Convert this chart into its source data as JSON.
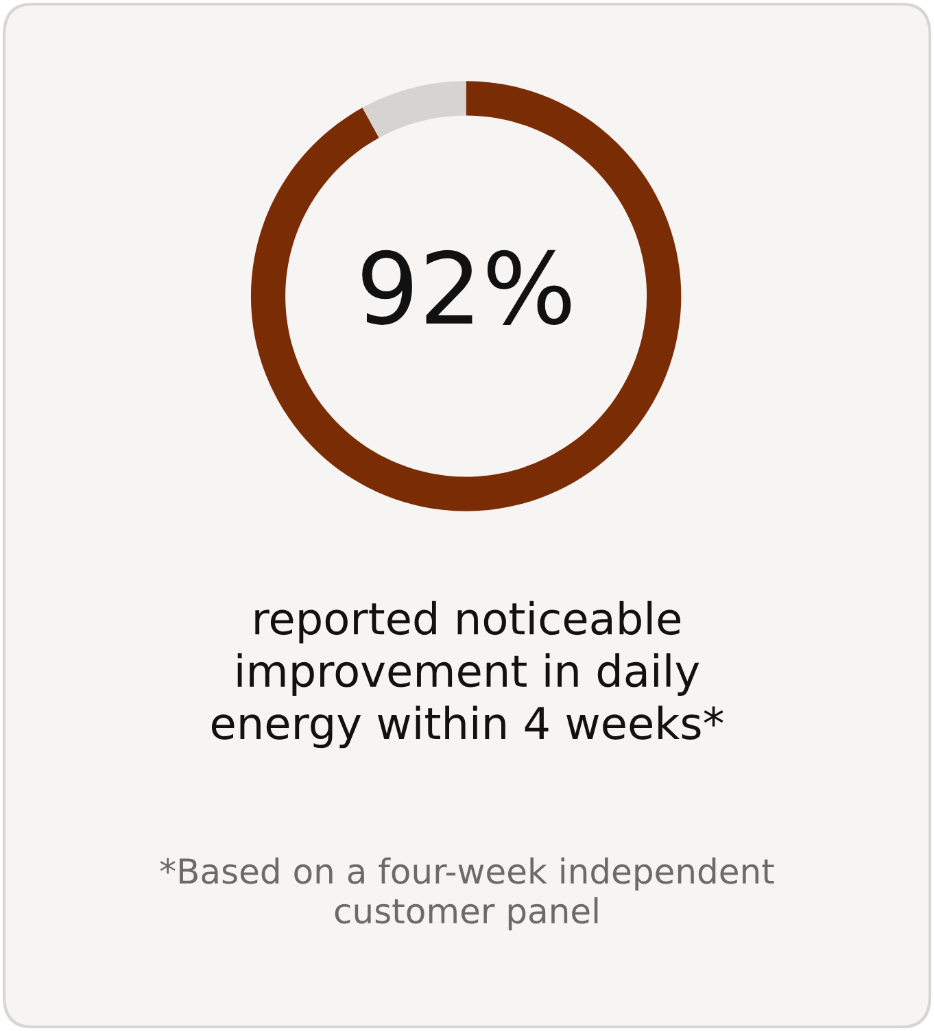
{
  "chart_data": {
    "type": "donut",
    "title": "reported noticeable\nimprovement in daily\nenergy within 4 weeks*",
    "annotations": [
      "92%",
      "*Based on a four-week independent\ncustomer panel"
    ],
    "categories": [
      null,
      null
    ],
    "values": [
      92,
      8
    ],
    "colors": [
      "#7a2c05",
      "#d6d4d1"
    ],
    "legend": false
  }
}
